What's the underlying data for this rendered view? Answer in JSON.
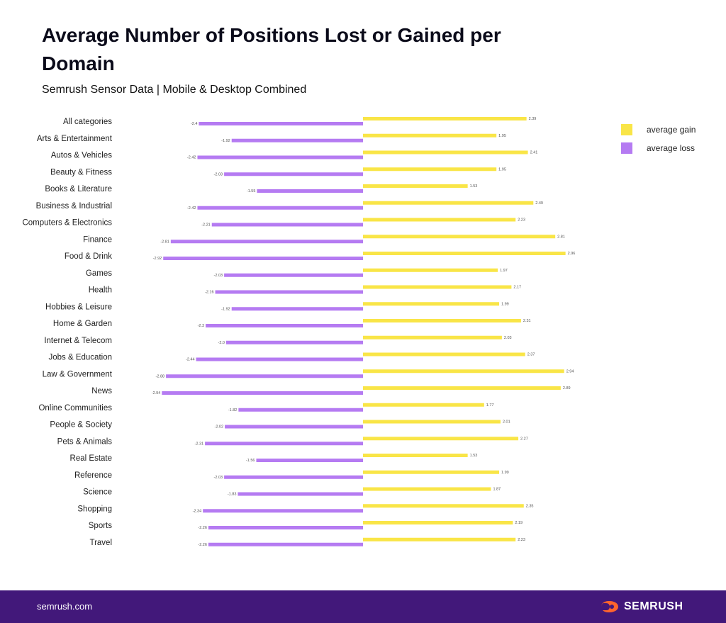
{
  "header": {
    "title": "Average Number of Positions Lost or Gained per Domain",
    "subtitle": "Semrush Sensor Data | Mobile & Desktop Combined"
  },
  "legend": {
    "gain_label": "average gain",
    "loss_label": "average loss"
  },
  "colors": {
    "gain": "#f9e547",
    "loss": "#b57bf2",
    "footer": "#42187a",
    "logo_accent": "#ff642d"
  },
  "footer": {
    "site": "semrush.com",
    "logo_text": "SEMRUSH"
  },
  "chart_data": {
    "type": "bar",
    "orientation": "horizontal",
    "title": "Average Number of Positions Lost or Gained per Domain",
    "subtitle": "Semrush Sensor Data | Mobile & Desktop Combined",
    "xlim": [
      -3.2,
      3.2
    ],
    "categories": [
      "All categories",
      "Arts & Entertainment",
      "Autos & Vehicles",
      "Beauty & Fitness",
      "Books & Literature",
      "Business & Industrial",
      "Computers & Electronics",
      "Finance",
      "Food & Drink",
      "Games",
      "Health",
      "Hobbies & Leisure",
      "Home & Garden",
      "Internet & Telecom",
      "Jobs & Education",
      "Law & Government",
      "News",
      "Online Communities",
      "People & Society",
      "Pets & Animals",
      "Real Estate",
      "Reference",
      "Science",
      "Shopping",
      "Sports",
      "Travel"
    ],
    "series": [
      {
        "name": "average gain",
        "values": [
          2.39,
          1.95,
          2.41,
          1.95,
          1.53,
          2.49,
          2.23,
          2.81,
          2.96,
          1.97,
          2.17,
          1.99,
          2.31,
          2.03,
          2.37,
          2.94,
          2.89,
          1.77,
          2.01,
          2.27,
          1.53,
          1.99,
          1.87,
          2.35,
          2.19,
          2.23
        ],
        "labels": [
          "2.39",
          "1.95",
          "2.41",
          "1.95",
          "1.53",
          "2.49",
          "2.23",
          "2.81",
          "2.96",
          "1.97",
          "2.17",
          "1.99",
          "2.31",
          "2.03",
          "2.37",
          "2.94",
          "2.89",
          "1.77",
          "2.01",
          "2.27",
          "1.53",
          "1.99",
          "1.87",
          "2.35",
          "2.19",
          "2.23"
        ]
      },
      {
        "name": "average loss",
        "values": [
          -2.4,
          -1.92,
          -2.42,
          -2.03,
          -1.55,
          -2.42,
          -2.21,
          -2.81,
          -2.92,
          -2.03,
          -2.16,
          -1.92,
          -2.3,
          -2.0,
          -2.44,
          -2.88,
          -2.94,
          -1.82,
          -2.02,
          -2.31,
          -1.56,
          -2.03,
          -1.83,
          -2.34,
          -2.26,
          -2.26
        ],
        "labels": [
          "-2.4",
          "-1.92",
          "-2.42",
          "-2.03",
          "-1.55",
          "-2.42",
          "-2.21",
          "-2.81",
          "-2.92",
          "-2.03",
          "-2.16",
          "-1.92",
          "-2.3",
          "-2.0",
          "-2.44",
          "-2.88",
          "-2.94",
          "-1.82",
          "-2.02",
          "-2.31",
          "-1.56",
          "-2.03",
          "-1.83",
          "-2.34",
          "-2.26",
          "-2.26"
        ]
      }
    ]
  }
}
